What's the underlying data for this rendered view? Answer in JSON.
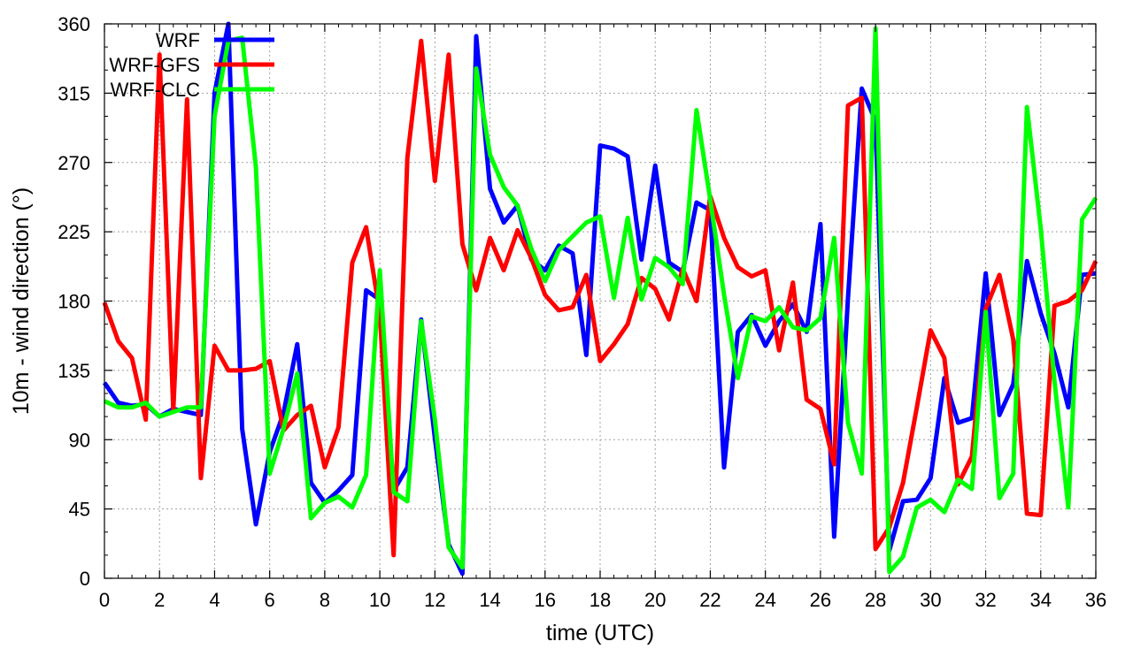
{
  "chart_data": {
    "type": "line",
    "xlabel": "time (UTC)",
    "ylabel": "10m - wind direction (°)",
    "xlim": [
      0,
      36
    ],
    "ylim": [
      0,
      360
    ],
    "xticks": [
      0,
      2,
      4,
      6,
      8,
      10,
      12,
      14,
      16,
      18,
      20,
      22,
      24,
      26,
      28,
      30,
      32,
      34,
      36
    ],
    "yticks": [
      0,
      45,
      90,
      135,
      180,
      225,
      270,
      315,
      360
    ],
    "grid": true,
    "legend_position": "top-left",
    "series": [
      {
        "name": "WRF",
        "color": "#0000ff",
        "x": [
          0,
          0.5,
          1,
          1.5,
          2,
          2.5,
          3,
          3.5,
          4,
          4.5,
          5,
          5.5,
          6,
          6.5,
          7,
          7.5,
          8,
          8.5,
          9,
          9.5,
          10,
          10.5,
          11,
          11.5,
          12,
          12.5,
          13,
          13.5,
          14,
          14.5,
          15,
          15.5,
          16,
          16.5,
          17,
          17.5,
          18,
          18.5,
          19,
          19.5,
          20,
          20.5,
          21,
          21.5,
          22,
          22.5,
          23,
          23.5,
          24,
          24.5,
          25,
          25.5,
          26,
          26.5,
          27,
          27.5,
          28,
          28.5,
          29,
          29.5,
          30,
          30.5,
          31,
          31.5,
          32,
          32.5,
          33,
          33.5,
          34,
          34.5,
          35,
          35.5,
          36
        ],
        "values": [
          127,
          114,
          112,
          113,
          105,
          110,
          108,
          106,
          315,
          360,
          97,
          35,
          82,
          107,
          152,
          62,
          49,
          57,
          67,
          187,
          181,
          57,
          72,
          168,
          91,
          22,
          3,
          352,
          253,
          231,
          242,
          207,
          200,
          216,
          211,
          145,
          281,
          279,
          274,
          207,
          268,
          205,
          199,
          244,
          239,
          72,
          160,
          171,
          151,
          167,
          178,
          160,
          230,
          27,
          182,
          318,
          297,
          18,
          50,
          51,
          65,
          130,
          101,
          104,
          198,
          106,
          126,
          206,
          172,
          146,
          111,
          197,
          198
        ]
      },
      {
        "name": "WRF-GFS",
        "color": "#ff0000",
        "x": [
          0,
          0.5,
          1,
          1.5,
          2,
          2.5,
          3,
          3.5,
          4,
          4.5,
          5,
          5.5,
          6,
          6.5,
          7,
          7.5,
          8,
          8.5,
          9,
          9.5,
          10,
          10.5,
          11,
          11.5,
          12,
          12.5,
          13,
          13.5,
          14,
          14.5,
          15,
          15.5,
          16,
          16.5,
          17,
          17.5,
          18,
          18.5,
          19,
          19.5,
          20,
          20.5,
          21,
          21.5,
          22,
          22.5,
          23,
          23.5,
          24,
          24.5,
          25,
          25.5,
          26,
          26.5,
          27,
          27.5,
          28,
          28.5,
          29,
          29.5,
          30,
          30.5,
          31,
          31.5,
          32,
          32.5,
          33,
          33.5,
          34,
          34.5,
          35,
          35.5,
          36
        ],
        "values": [
          179,
          154,
          143,
          103,
          340,
          109,
          311,
          65,
          151,
          135,
          135,
          136,
          141,
          96,
          106,
          112,
          72,
          98,
          205,
          228,
          172,
          15,
          273,
          349,
          258,
          340,
          217,
          187,
          221,
          200,
          226,
          208,
          184,
          174,
          176,
          197,
          141,
          152,
          165,
          195,
          188,
          168,
          201,
          180,
          248,
          221,
          202,
          196,
          200,
          148,
          192,
          116,
          110,
          74,
          307,
          312,
          19,
          33,
          62,
          111,
          161,
          143,
          61,
          79,
          175,
          197,
          155,
          42,
          41,
          177,
          180,
          187,
          206
        ]
      },
      {
        "name": "WRF-CLC",
        "color": "#00ff00",
        "x": [
          0,
          0.5,
          1,
          1.5,
          2,
          2.5,
          3,
          3.5,
          4,
          4.5,
          5,
          5.5,
          6,
          6.5,
          7,
          7.5,
          8,
          8.5,
          9,
          9.5,
          10,
          10.5,
          11,
          11.5,
          12,
          12.5,
          13,
          13.5,
          14,
          14.5,
          15,
          15.5,
          16,
          16.5,
          17,
          17.5,
          18,
          18.5,
          19,
          19.5,
          20,
          20.5,
          21,
          21.5,
          22,
          22.5,
          23,
          23.5,
          24,
          24.5,
          25,
          25.5,
          26,
          26.5,
          27,
          27.5,
          28,
          28.5,
          29,
          29.5,
          30,
          30.5,
          31,
          31.5,
          32,
          32.5,
          33,
          33.5,
          34,
          34.5,
          35,
          35.5,
          36
        ],
        "values": [
          115,
          111,
          111,
          114,
          105,
          108,
          111,
          111,
          300,
          349,
          351,
          267,
          68,
          97,
          133,
          39,
          49,
          53,
          46,
          67,
          200,
          56,
          50,
          167,
          103,
          20,
          7,
          331,
          275,
          254,
          242,
          214,
          193,
          213,
          222,
          231,
          235,
          182,
          234,
          181,
          208,
          202,
          191,
          304,
          246,
          184,
          130,
          170,
          167,
          176,
          163,
          161,
          169,
          221,
          101,
          68,
          357,
          4,
          14,
          46,
          51,
          43,
          64,
          58,
          173,
          52,
          68,
          306,
          227,
          128,
          46,
          233,
          247
        ]
      }
    ]
  }
}
